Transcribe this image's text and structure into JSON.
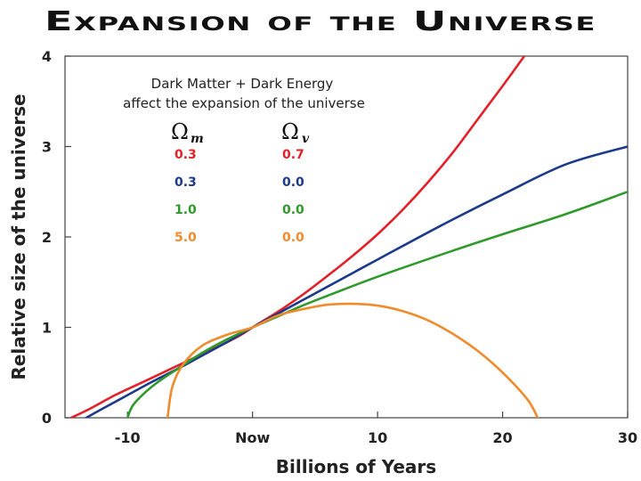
{
  "chart_data": {
    "type": "line",
    "title": "Expansion of the Universe",
    "xlabel": "Billions of Years",
    "ylabel": "Relative size of the universe",
    "xlim": [
      -15,
      30
    ],
    "ylim": [
      0,
      4
    ],
    "xticks": [
      {
        "value": -10,
        "label": "-10"
      },
      {
        "value": 0,
        "label": "Now"
      },
      {
        "value": 10,
        "label": "10"
      },
      {
        "value": 20,
        "label": "20"
      },
      {
        "value": 30,
        "label": "30"
      }
    ],
    "yticks": [
      {
        "value": 0,
        "label": "0"
      },
      {
        "value": 1,
        "label": "1"
      },
      {
        "value": 2,
        "label": "2"
      },
      {
        "value": 3,
        "label": "3"
      },
      {
        "value": 4,
        "label": "4"
      }
    ],
    "annotation": {
      "line1": "Dark Matter + Dark Energy",
      "line2": "affect the expansion of the universe"
    },
    "table": {
      "header_m_symbol": "Ω",
      "header_m_sub": "m",
      "header_v_symbol": "Ω",
      "header_v_sub": "v",
      "rows": [
        {
          "omega_m": "0.3",
          "omega_v": "0.7",
          "color": "#e32028"
        },
        {
          "omega_m": "0.3",
          "omega_v": "0.0",
          "color": "#1c3a8a"
        },
        {
          "omega_m": "1.0",
          "omega_v": "0.0",
          "color": "#2f9a2b"
        },
        {
          "omega_m": "5.0",
          "omega_v": "0.0",
          "color": "#f08a2c"
        }
      ]
    },
    "series": [
      {
        "name": "Ωm=0.3, Ωv=0.7",
        "color": "#e32028",
        "points": [
          [
            -14.5,
            0
          ],
          [
            -13,
            0.1
          ],
          [
            -11,
            0.25
          ],
          [
            -9,
            0.38
          ],
          [
            -7,
            0.51
          ],
          [
            -5,
            0.64
          ],
          [
            -3,
            0.77
          ],
          [
            -1,
            0.91
          ],
          [
            0,
            1.0
          ],
          [
            2,
            1.17
          ],
          [
            4,
            1.36
          ],
          [
            6,
            1.57
          ],
          [
            8,
            1.79
          ],
          [
            10,
            2.03
          ],
          [
            12,
            2.3
          ],
          [
            14,
            2.6
          ],
          [
            16,
            2.93
          ],
          [
            18,
            3.3
          ],
          [
            20,
            3.67
          ],
          [
            22,
            4.05
          ]
        ]
      },
      {
        "name": "Ωm=0.3, Ωv=0.0",
        "color": "#1c3a8a",
        "points": [
          [
            -13.3,
            0
          ],
          [
            -12,
            0.1
          ],
          [
            -10,
            0.25
          ],
          [
            -8,
            0.4
          ],
          [
            -6,
            0.54
          ],
          [
            -4,
            0.69
          ],
          [
            -2,
            0.84
          ],
          [
            0,
            1.0
          ],
          [
            2,
            1.15
          ],
          [
            4,
            1.3
          ],
          [
            6,
            1.45
          ],
          [
            8,
            1.6
          ],
          [
            10,
            1.75
          ],
          [
            15,
            2.12
          ],
          [
            20,
            2.47
          ],
          [
            25,
            2.8
          ],
          [
            30,
            3.0
          ]
        ]
      },
      {
        "name": "Ωm=1.0, Ωv=0.0",
        "color": "#2f9a2b",
        "points": [
          [
            -10,
            0
          ],
          [
            -9.5,
            0.15
          ],
          [
            -8,
            0.35
          ],
          [
            -6,
            0.54
          ],
          [
            -4,
            0.72
          ],
          [
            -2,
            0.87
          ],
          [
            0,
            1.0
          ],
          [
            2,
            1.12
          ],
          [
            4,
            1.24
          ],
          [
            6,
            1.35
          ],
          [
            10,
            1.56
          ],
          [
            15,
            1.8
          ],
          [
            20,
            2.03
          ],
          [
            25,
            2.25
          ],
          [
            30,
            2.5
          ]
        ]
      },
      {
        "name": "Ωm=5.0, Ωv=0.0",
        "color": "#f08a2c",
        "points": [
          [
            -6.8,
            0
          ],
          [
            -6.4,
            0.35
          ],
          [
            -5.5,
            0.6
          ],
          [
            -4,
            0.8
          ],
          [
            -2,
            0.92
          ],
          [
            0,
            1.0
          ],
          [
            2,
            1.13
          ],
          [
            4,
            1.2
          ],
          [
            6,
            1.25
          ],
          [
            8,
            1.26
          ],
          [
            10,
            1.24
          ],
          [
            12,
            1.18
          ],
          [
            14,
            1.08
          ],
          [
            16,
            0.93
          ],
          [
            18,
            0.74
          ],
          [
            20,
            0.5
          ],
          [
            22,
            0.2
          ],
          [
            22.8,
            0
          ]
        ]
      }
    ]
  }
}
